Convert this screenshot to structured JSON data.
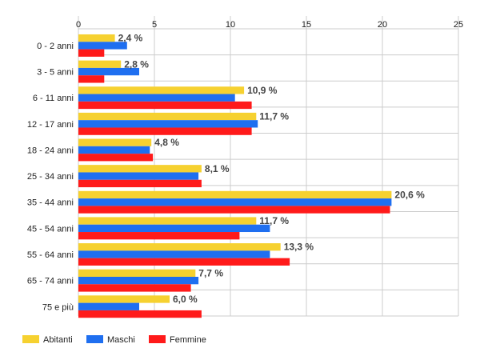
{
  "chart_data": {
    "type": "bar",
    "orientation": "horizontal",
    "title": "",
    "xlabel": "",
    "ylabel": "",
    "xlim": [
      0,
      25
    ],
    "x_ticks": [
      "0",
      "5",
      "10",
      "15",
      "20",
      "25"
    ],
    "grid": true,
    "legend_position": "bottom-left",
    "categories": [
      "0 - 2 anni",
      "3 - 5 anni",
      "6 - 11 anni",
      "12 - 17 anni",
      "18 - 24 anni",
      "25 - 34 anni",
      "35 - 44 anni",
      "45 - 54 anni",
      "55 - 64 anni",
      "65 - 74 anni",
      "75 e più"
    ],
    "series": [
      {
        "name": "Abitanti",
        "color": "#f6d130",
        "values": [
          2.4,
          2.8,
          10.9,
          11.7,
          4.8,
          8.1,
          20.6,
          11.7,
          13.3,
          7.7,
          6.0
        ]
      },
      {
        "name": "Maschi",
        "color": "#1f6ff0",
        "values": [
          3.2,
          4.0,
          10.3,
          11.8,
          4.7,
          7.9,
          20.6,
          12.6,
          12.6,
          7.9,
          4.0
        ]
      },
      {
        "name": "Femmine",
        "color": "#ff1a1a",
        "values": [
          1.7,
          1.7,
          11.4,
          11.4,
          4.9,
          8.1,
          20.5,
          10.6,
          13.9,
          7.4,
          8.1
        ]
      }
    ],
    "data_labels": [
      "2,4 %",
      "2,8 %",
      "10,9 %",
      "11,7 %",
      "4,8 %",
      "8,1 %",
      "20,6 %",
      "11,7 %",
      "13,3 %",
      "7,7 %",
      "6,0 %"
    ]
  }
}
